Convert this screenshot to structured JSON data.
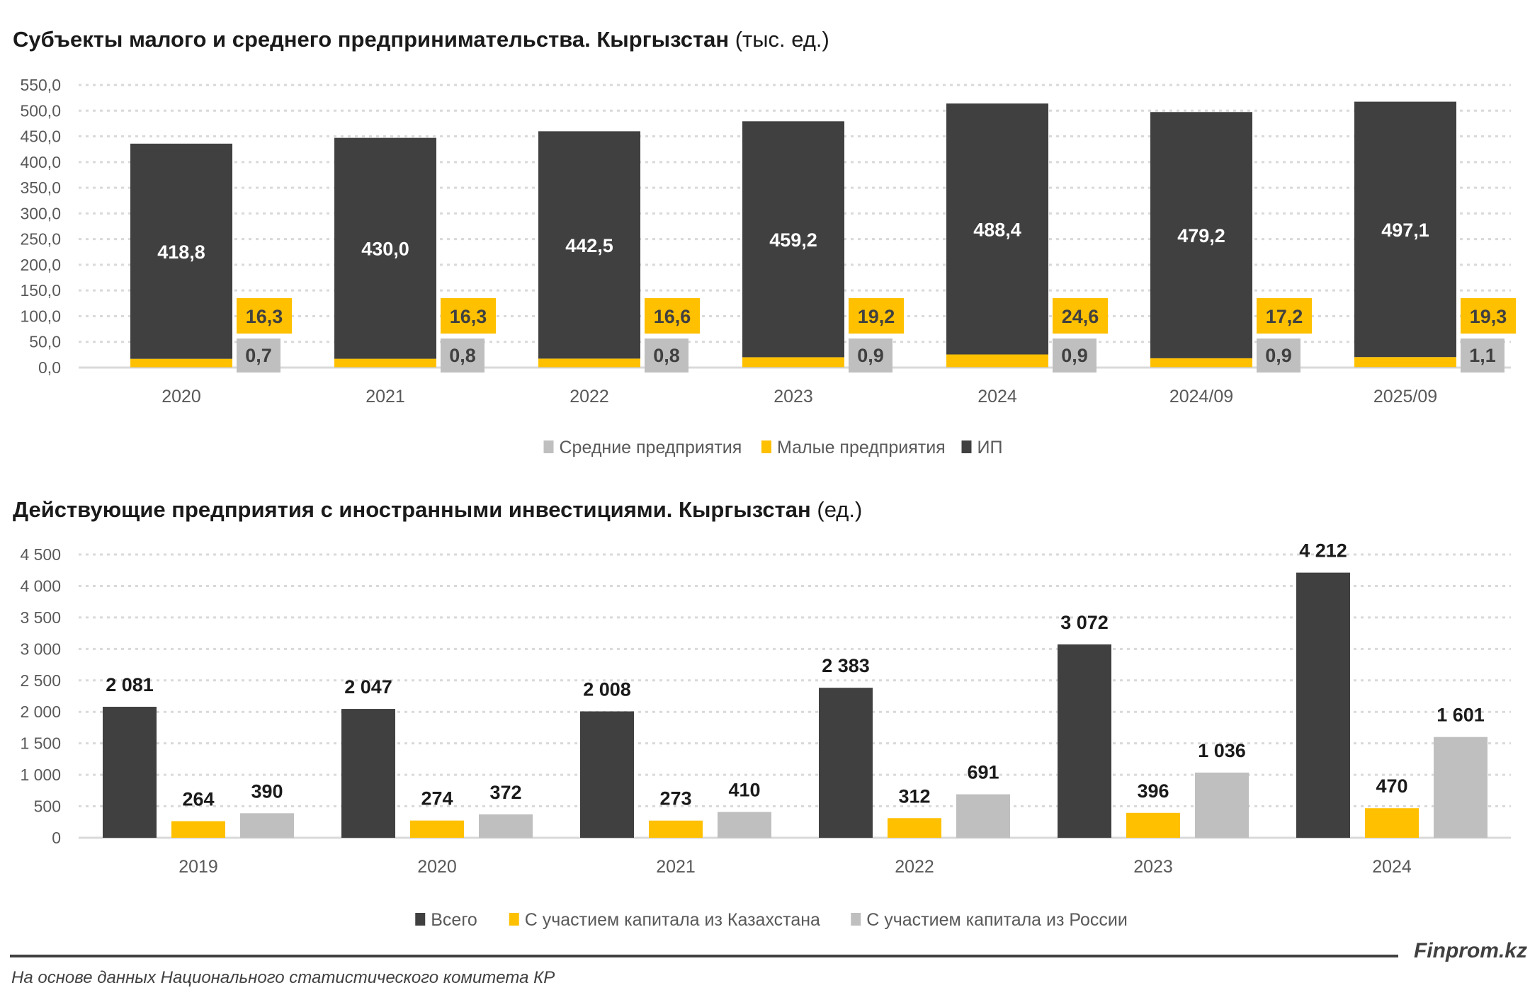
{
  "colors": {
    "dark": "#404040",
    "yellow": "#FFC000",
    "gray": "#BFBFBF"
  },
  "chart_data": [
    {
      "type": "bar",
      "stacked": true,
      "title": "Субъекты малого и среднего предпринимательства. Кыргызстан",
      "unit": "(тыс. ед.)",
      "categories": [
        "2020",
        "2021",
        "2022",
        "2023",
        "2024",
        "2024/09",
        "2025/09"
      ],
      "series": [
        {
          "name": "Средние предприятия",
          "color": "#BFBFBF",
          "values": [
            0.7,
            0.8,
            0.8,
            0.9,
            0.9,
            0.9,
            1.1
          ],
          "labels": [
            "0,7",
            "0,8",
            "0,8",
            "0,9",
            "0,9",
            "0,9",
            "1,1"
          ]
        },
        {
          "name": "Малые предприятия",
          "color": "#FFC000",
          "values": [
            16.3,
            16.3,
            16.6,
            19.2,
            24.6,
            17.2,
            19.3
          ],
          "labels": [
            "16,3",
            "16,3",
            "16,6",
            "19,2",
            "24,6",
            "17,2",
            "19,3"
          ]
        },
        {
          "name": "ИП",
          "color": "#404040",
          "values": [
            418.8,
            430.0,
            442.5,
            459.2,
            488.4,
            479.2,
            497.1
          ],
          "labels": [
            "418,8",
            "430,0",
            "442,5",
            "459,2",
            "488,4",
            "479,2",
            "497,1"
          ]
        }
      ],
      "ylim": [
        0,
        550
      ],
      "yticks": [
        "0,0",
        "50,0",
        "100,0",
        "150,0",
        "200,0",
        "250,0",
        "300,0",
        "350,0",
        "400,0",
        "450,0",
        "500,0",
        "550,0"
      ],
      "grid": true,
      "legend": "bottom"
    },
    {
      "type": "bar",
      "stacked": false,
      "title": "Действующие предприятия с иностранными инвестициями. Кыргызстан",
      "unit": "(ед.)",
      "categories": [
        "2019",
        "2020",
        "2021",
        "2022",
        "2023",
        "2024"
      ],
      "series": [
        {
          "name": "Всего",
          "color": "#404040",
          "values": [
            2081,
            2047,
            2008,
            2383,
            3072,
            4212
          ],
          "labels": [
            "2 081",
            "2 047",
            "2 008",
            "2 383",
            "3 072",
            "4 212"
          ]
        },
        {
          "name": "С участием капитала из Казахстана",
          "color": "#FFC000",
          "values": [
            264,
            274,
            273,
            312,
            396,
            470
          ],
          "labels": [
            "264",
            "274",
            "273",
            "312",
            "396",
            "470"
          ]
        },
        {
          "name": "С участием капитала из России",
          "color": "#BFBFBF",
          "values": [
            390,
            372,
            410,
            691,
            1036,
            1601
          ],
          "labels": [
            "390",
            "372",
            "410",
            "691",
            "1 036",
            "1 601"
          ]
        }
      ],
      "ylim": [
        0,
        4500
      ],
      "yticks": [
        "0",
        "500",
        "1 000",
        "1 500",
        "2 000",
        "2 500",
        "3 000",
        "3 500",
        "4 000",
        "4 500"
      ],
      "grid": true,
      "legend": "bottom"
    }
  ],
  "footer": {
    "source": "На основе данных Национального статистического комитета КР",
    "brand": "Finprom.kz"
  }
}
